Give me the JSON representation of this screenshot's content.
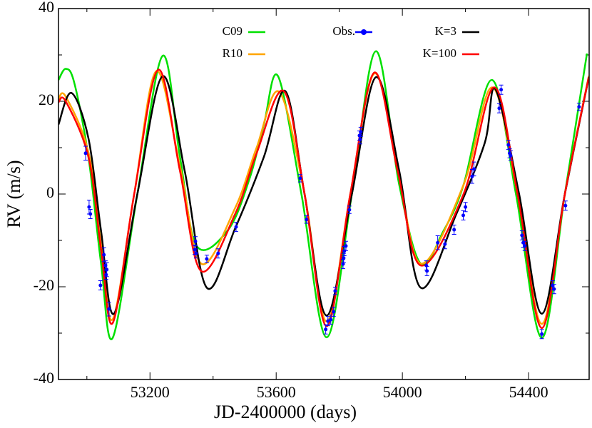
{
  "chart_data": {
    "type": "line",
    "xlabel": "JD-2400000 (days)",
    "ylabel": "RV (m/s)",
    "xlim": [
      52910,
      54592
    ],
    "ylim": [
      -40,
      40
    ],
    "xticks": [
      53200,
      53600,
      54000,
      54400
    ],
    "yticks": [
      -40,
      -20,
      0,
      20,
      40
    ],
    "xminor_ticks": [
      53000,
      53400,
      53800,
      54200
    ],
    "yminor_ticks": [
      -30,
      -10,
      10,
      30
    ],
    "series": [
      {
        "name": "C09",
        "color": "#00e000",
        "style": "line",
        "x": [
          52910,
          52933,
          52960,
          53005,
          53045,
          53082,
          53160,
          53240,
          53295,
          53348,
          53448,
          53516,
          53561,
          53606,
          53680,
          53760,
          53840,
          53916,
          53990,
          54058,
          54130,
          54194,
          54284,
          54360,
          54442,
          54515,
          54585
        ],
        "values": [
          24.6,
          27,
          24,
          8,
          -15,
          -31,
          0,
          29.8,
          8,
          -11.2,
          -7.7,
          3.4,
          15,
          25.4,
          0,
          -30.9,
          0,
          30.8,
          2,
          -15,
          -8,
          2,
          24.6,
          0,
          -31,
          0,
          30.3
        ]
      },
      {
        "name": "R10",
        "color": "#ffa500",
        "style": "line",
        "x": [
          52910,
          52933,
          53005,
          53045,
          53082,
          53150,
          53220,
          53295,
          53362,
          53470,
          53538,
          53610,
          53690,
          53760,
          53835,
          53911,
          53985,
          54058,
          54194,
          54285,
          54365,
          54442,
          54515,
          54591
        ],
        "values": [
          20.5,
          21,
          9,
          -11,
          -27,
          0,
          26.5,
          6,
          -15,
          -3,
          10,
          22,
          0,
          -27.5,
          0,
          26,
          6,
          -15,
          2,
          23,
          0,
          -28,
          0,
          25.5
        ]
      },
      {
        "name": "Obs.",
        "color": "#0000ff",
        "style": "errorbar",
        "x": [
          52996,
          53007,
          53011,
          53043,
          53054,
          53059,
          53061,
          53063,
          53070,
          53344,
          53342,
          53346,
          53380,
          53416,
          53473,
          53676,
          53696,
          53757,
          53764,
          53773,
          53782,
          53787,
          53812,
          53814,
          53816,
          53821,
          53832,
          53864,
          53866,
          53868,
          54076,
          54078,
          54112,
          54135,
          54164,
          54193,
          54200,
          54221,
          54227,
          54307,
          54313,
          54336,
          54340,
          54343,
          54379,
          54383,
          54388,
          54442,
          54476,
          54481,
          54517,
          54560
        ],
        "values": [
          8.8,
          -2.8,
          -4.3,
          -19.7,
          -13.1,
          -15.4,
          -17.4,
          -16.3,
          -24.8,
          -10.2,
          -12,
          -12.8,
          -14,
          -12.8,
          -7.1,
          3.4,
          -5.5,
          -29.2,
          -27.4,
          -27.1,
          -25.4,
          -20.9,
          -15.1,
          -13.8,
          -12.3,
          -11.2,
          -3.4,
          12.6,
          11.8,
          13.4,
          -15.4,
          -16.6,
          -10.5,
          -10.8,
          -7.7,
          -4.6,
          -2.8,
          3.8,
          5.4,
          18.5,
          22.5,
          10.6,
          8.8,
          8.3,
          -8.9,
          -10.5,
          -11.2,
          -30.2,
          -19.7,
          -20.5,
          -2.5,
          18.8
        ],
        "errors": [
          1.5,
          1.5,
          1,
          1,
          1.5,
          1,
          1,
          1.5,
          1.5,
          1,
          1,
          1,
          0.8,
          1,
          1,
          0.8,
          0.8,
          1,
          1,
          1,
          1,
          0.8,
          1,
          1,
          1,
          1,
          0.8,
          1,
          1,
          1,
          1,
          1,
          1.5,
          1,
          1,
          1,
          1,
          1.5,
          1.5,
          1,
          1,
          1,
          1,
          1,
          1,
          1,
          1,
          1,
          1,
          1,
          1,
          0.8
        ]
      },
      {
        "name": "K=3",
        "color": "#000000",
        "style": "line",
        "x": [
          52910,
          52951,
          53005,
          53045,
          53086,
          53160,
          53240,
          53310,
          53380,
          53470,
          53561,
          53629,
          53690,
          53760,
          53840,
          53916,
          53990,
          54058,
          54171,
          54261,
          54295,
          54370,
          54442,
          54515,
          54591
        ],
        "values": [
          15,
          21.8,
          12,
          -8,
          -25.8,
          0,
          25.4,
          5,
          -20.2,
          -7.4,
          8,
          22.2,
          0,
          -26.2,
          0,
          25.2,
          5,
          -20.2,
          -4.3,
          11,
          22.6,
          0,
          -25.8,
          0,
          25.2
        ]
      },
      {
        "name": "K=100",
        "color": "#ff0000",
        "style": "line",
        "x": [
          52910,
          52933,
          53005,
          53045,
          53082,
          53150,
          53226,
          53295,
          53362,
          53470,
          53538,
          53624,
          53690,
          53760,
          53835,
          53911,
          53985,
          54058,
          54194,
          54291,
          54365,
          54442,
          54515,
          54591
        ],
        "values": [
          19.8,
          20,
          8,
          -12,
          -27.8,
          0,
          26.8,
          5,
          -16.6,
          -4.3,
          8.8,
          22.2,
          0,
          -28.5,
          0,
          26.2,
          5,
          -15.4,
          0,
          23,
          0,
          -28.9,
          0,
          25.2
        ]
      }
    ]
  }
}
